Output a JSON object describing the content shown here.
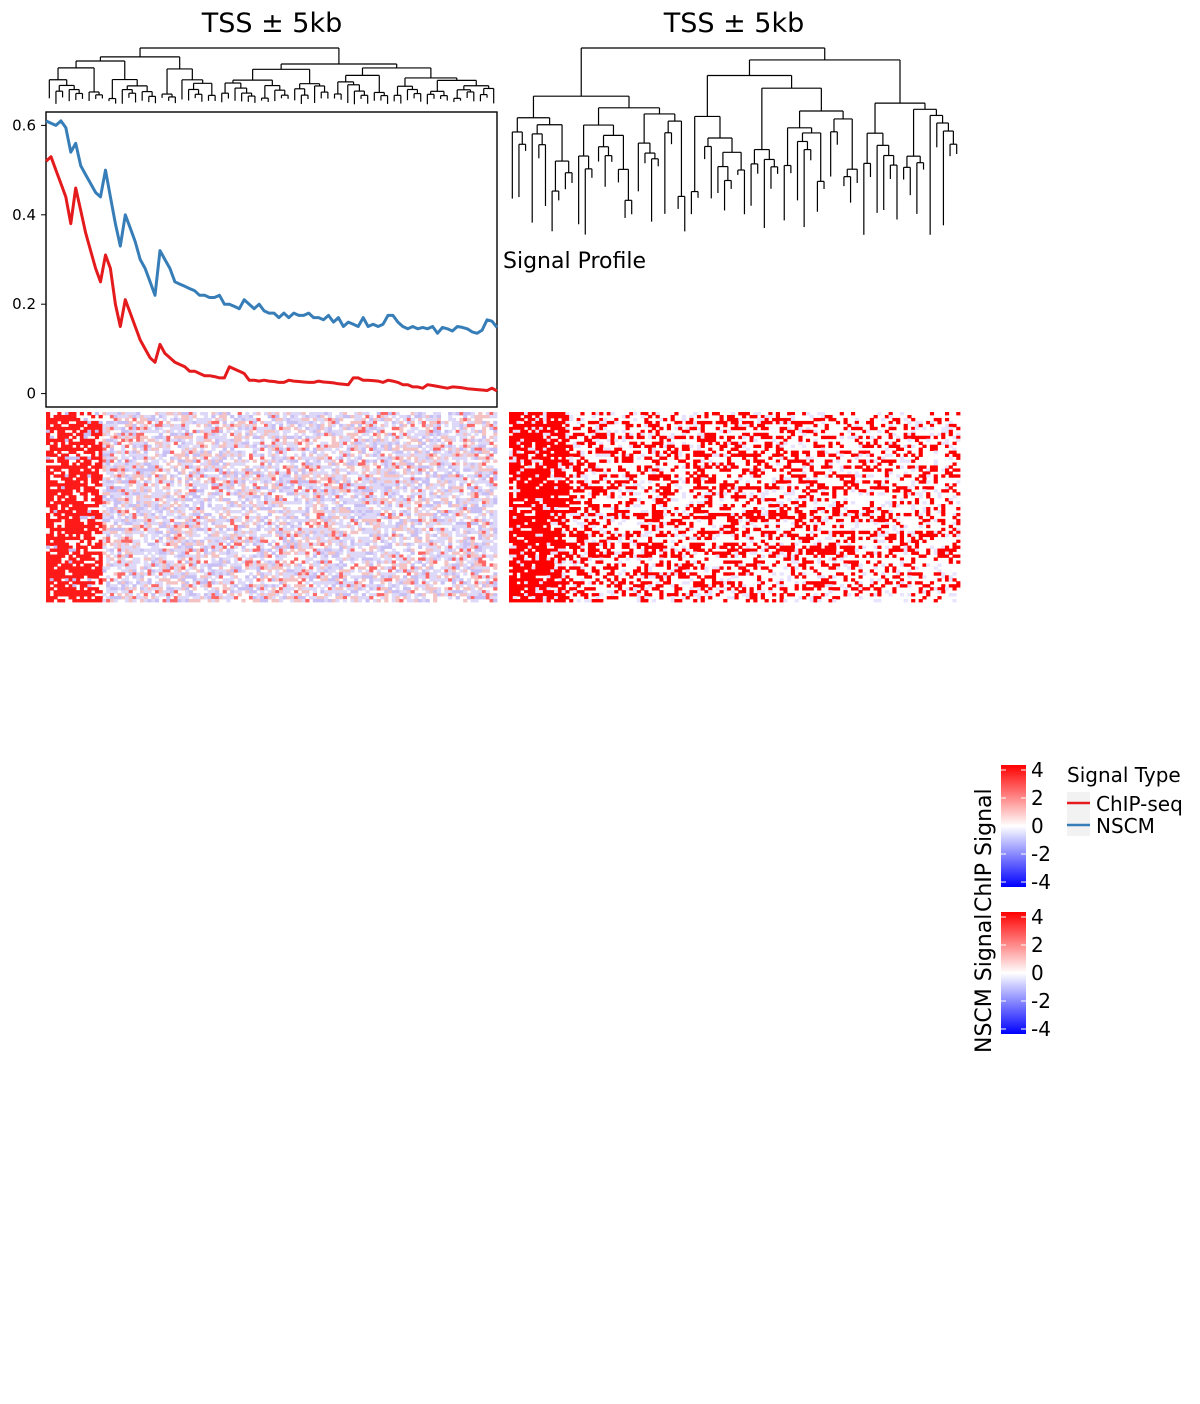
{
  "panel_titles": [
    "TSS ± 5kb",
    "TSS ± 5kb"
  ],
  "overlay_label": "Signal Profile",
  "colorbar_chip": {
    "title": "ChIP Signal",
    "ticks": [
      "4",
      "2",
      "0",
      "-2",
      "-4"
    ],
    "colors": [
      "#ff0000",
      "#ffffff",
      "#0000ff"
    ]
  },
  "colorbar_nscm": {
    "title": "NSCM Signal",
    "ticks": [
      "4",
      "2",
      "0",
      "-2",
      "-4"
    ],
    "colors": [
      "#ff0000",
      "#ffffff",
      "#0000ff"
    ]
  },
  "legend": {
    "title": "Signal Type",
    "items": [
      {
        "label": "ChIP-seq",
        "color": "#e41a1c"
      },
      {
        "label": "NSCM",
        "color": "#377eb8"
      }
    ]
  },
  "chart_data": [
    {
      "type": "line",
      "title": "TSS ± 5kb",
      "xlabel": "",
      "ylabel": "",
      "ylim": [
        -0.03,
        0.63
      ],
      "yticks": [
        "0",
        "0.2",
        "0.4",
        "0.6"
      ],
      "grid": false,
      "series": [
        {
          "name": "ChIP-seq",
          "color": "#e41a1c",
          "values": [
            0.52,
            0.53,
            0.5,
            0.47,
            0.44,
            0.38,
            0.46,
            0.41,
            0.36,
            0.32,
            0.28,
            0.25,
            0.31,
            0.28,
            0.2,
            0.15,
            0.21,
            0.18,
            0.15,
            0.12,
            0.1,
            0.08,
            0.07,
            0.11,
            0.09,
            0.08,
            0.07,
            0.065,
            0.06,
            0.05,
            0.05,
            0.045,
            0.04,
            0.04,
            0.038,
            0.035,
            0.035,
            0.06,
            0.055,
            0.05,
            0.045,
            0.03,
            0.03,
            0.028,
            0.03,
            0.028,
            0.027,
            0.025,
            0.025,
            0.03,
            0.028,
            0.027,
            0.026,
            0.025,
            0.025,
            0.028,
            0.026,
            0.025,
            0.024,
            0.022,
            0.021,
            0.02,
            0.035,
            0.035,
            0.03,
            0.03,
            0.029,
            0.028,
            0.025,
            0.03,
            0.028,
            0.025,
            0.02,
            0.02,
            0.015,
            0.015,
            0.012,
            0.02,
            0.018,
            0.016,
            0.014,
            0.012,
            0.015,
            0.014,
            0.013,
            0.011,
            0.01,
            0.009,
            0.008,
            0.007,
            0.012,
            0.006
          ]
        },
        {
          "name": "NSCM",
          "color": "#377eb8",
          "values": [
            0.61,
            0.605,
            0.6,
            0.61,
            0.595,
            0.54,
            0.56,
            0.51,
            0.49,
            0.47,
            0.45,
            0.44,
            0.5,
            0.44,
            0.38,
            0.33,
            0.4,
            0.37,
            0.34,
            0.3,
            0.28,
            0.25,
            0.22,
            0.32,
            0.3,
            0.28,
            0.25,
            0.245,
            0.24,
            0.235,
            0.23,
            0.22,
            0.22,
            0.215,
            0.215,
            0.22,
            0.2,
            0.2,
            0.195,
            0.19,
            0.21,
            0.2,
            0.19,
            0.2,
            0.185,
            0.18,
            0.18,
            0.17,
            0.18,
            0.17,
            0.18,
            0.175,
            0.175,
            0.18,
            0.17,
            0.17,
            0.165,
            0.175,
            0.16,
            0.17,
            0.15,
            0.16,
            0.155,
            0.15,
            0.17,
            0.15,
            0.155,
            0.15,
            0.155,
            0.175,
            0.175,
            0.16,
            0.15,
            0.145,
            0.15,
            0.145,
            0.148,
            0.145,
            0.15,
            0.135,
            0.148,
            0.145,
            0.14,
            0.15,
            0.148,
            0.145,
            0.138,
            0.135,
            0.142,
            0.165,
            0.162,
            0.148
          ]
        }
      ]
    }
  ]
}
